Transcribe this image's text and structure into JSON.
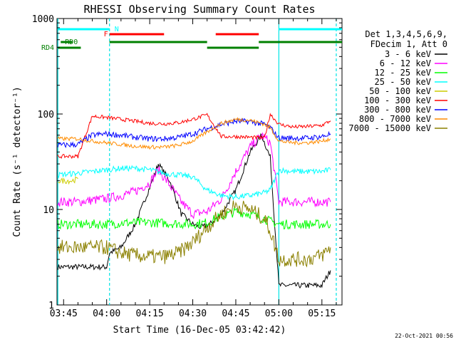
{
  "chart_data": {
    "type": "line",
    "title": "RHESSI Observing Summary Count Rates",
    "xlabel": "Start Time (16-Dec-05 03:42:42)",
    "ylabel": "Count Rate (s⁻¹ detector⁻¹)",
    "y_scale": "log",
    "ylim": [
      1,
      1000
    ],
    "xlim": [
      "03:42:42",
      "05:22:00"
    ],
    "x_ticks": [
      "03:45",
      "04:00",
      "04:15",
      "04:30",
      "04:45",
      "05:00",
      "05:15"
    ],
    "y_ticks": [
      "1",
      "10",
      "100",
      "1000"
    ],
    "timestamp": "22-Oct-2021 00:56",
    "legend": {
      "placement": "right",
      "header": [
        "Det 1,3,4,5,6,9,",
        "FDecim 1, Att 0"
      ]
    },
    "series": [
      {
        "name": "3 - 6 keV",
        "color": "#000000",
        "x": [
          "03:43",
          "03:50",
          "03:55",
          "04:00",
          "04:01",
          "04:05",
          "04:10",
          "04:15",
          "04:18",
          "04:22",
          "04:26",
          "04:30",
          "04:33",
          "04:36",
          "04:40",
          "04:45",
          "04:50",
          "04:54",
          "04:57",
          "05:00",
          "05:05",
          "05:10",
          "05:15",
          "05:18"
        ],
        "y": [
          2.5,
          2.5,
          2.5,
          2.5,
          3.5,
          4,
          7,
          17,
          30,
          20,
          9,
          7,
          6.5,
          7,
          9,
          16,
          40,
          60,
          35,
          1.6,
          1.6,
          1.6,
          1.6,
          2.3
        ]
      },
      {
        "name": "6 - 12 keV",
        "color": "#ff00ff",
        "x": [
          "03:43",
          "03:50",
          "03:55",
          "04:00",
          "04:05",
          "04:10",
          "04:15",
          "04:18",
          "04:22",
          "04:26",
          "04:30",
          "04:35",
          "04:40",
          "04:45",
          "04:50",
          "04:54",
          "04:57",
          "05:00",
          "05:05",
          "05:10",
          "05:15",
          "05:18"
        ],
        "y": [
          12,
          12,
          12.5,
          13,
          14,
          15.5,
          19,
          26,
          18,
          12,
          9,
          9.5,
          13,
          25,
          45,
          60,
          50,
          12,
          12,
          12,
          12,
          12
        ]
      },
      {
        "name": "12 - 25 keV",
        "color": "#00ff00",
        "x": [
          "03:43",
          "03:50",
          "03:55",
          "04:00",
          "04:05",
          "04:10",
          "04:15",
          "04:20",
          "04:25",
          "04:30",
          "04:35",
          "04:40",
          "04:45",
          "04:50",
          "04:55",
          "04:57",
          "05:00",
          "05:05",
          "05:10",
          "05:15",
          "05:18"
        ],
        "y": [
          7,
          7,
          7,
          7,
          7.2,
          7.3,
          7.3,
          7.2,
          7.1,
          7,
          7.3,
          8.5,
          9.5,
          9,
          8,
          7.5,
          7,
          7,
          7,
          7,
          7
        ]
      },
      {
        "name": "25 - 50 keV",
        "color": "#00ffff",
        "x": [
          "03:43",
          "03:50",
          "03:55",
          "04:00",
          "04:05",
          "04:10",
          "04:15",
          "04:20",
          "04:25",
          "04:30",
          "04:35",
          "04:40",
          "04:45",
          "04:50",
          "04:55",
          "04:57",
          "05:00",
          "05:05",
          "05:10",
          "05:15",
          "05:18"
        ],
        "y": [
          23,
          24,
          25,
          26,
          27,
          27,
          26,
          24,
          23,
          22,
          16,
          14,
          13.5,
          14,
          15,
          16,
          26,
          25,
          25,
          25,
          26
        ]
      },
      {
        "name": "50 - 100 keV",
        "color": "#cccc00",
        "x": [
          "03:43",
          "03:48",
          "03:50"
        ],
        "y": [
          20,
          20,
          21
        ]
      },
      {
        "name": "100 - 300 keV",
        "color": "#ff0000",
        "x": [
          "03:43",
          "03:50",
          "03:55",
          "04:00",
          "04:05",
          "04:10",
          "04:15",
          "04:20",
          "04:25",
          "04:30",
          "04:35",
          "04:40",
          "04:45",
          "04:50",
          "04:55",
          "04:57",
          "05:00",
          "05:05",
          "05:10",
          "05:15",
          "05:18"
        ],
        "y": [
          36,
          36,
          95,
          92,
          88,
          84,
          80,
          79,
          81,
          88,
          98,
          58,
          58,
          57,
          56,
          100,
          78,
          73,
          74,
          76,
          85
        ]
      },
      {
        "name": "300 - 800 keV",
        "color": "#0000ff",
        "x": [
          "03:43",
          "03:50",
          "03:55",
          "04:00",
          "04:05",
          "04:10",
          "04:15",
          "04:20",
          "04:25",
          "04:30",
          "04:35",
          "04:40",
          "04:45",
          "04:50",
          "04:55",
          "04:57",
          "05:00",
          "05:05",
          "05:10",
          "05:15",
          "05:18"
        ],
        "y": [
          47,
          48,
          60,
          62,
          60,
          57,
          55,
          55,
          57,
          62,
          70,
          78,
          84,
          83,
          78,
          72,
          56,
          56,
          56,
          58,
          62
        ]
      },
      {
        "name": "800 - 7000 keV",
        "color": "#ff8c00",
        "x": [
          "03:43",
          "03:50",
          "03:55",
          "04:00",
          "04:05",
          "04:10",
          "04:15",
          "04:20",
          "04:25",
          "04:30",
          "04:35",
          "04:40",
          "04:45",
          "04:50",
          "04:55",
          "04:57",
          "05:00",
          "05:05",
          "05:10",
          "05:15",
          "05:18"
        ],
        "y": [
          55,
          55,
          52,
          50,
          48,
          46,
          45,
          45,
          47,
          52,
          65,
          80,
          88,
          86,
          78,
          72,
          52,
          50,
          50,
          52,
          55
        ]
      },
      {
        "name": "7000 - 15000 keV",
        "color": "#8b8000",
        "x": [
          "03:43",
          "03:50",
          "03:55",
          "04:00",
          "04:05",
          "04:10",
          "04:15",
          "04:20",
          "04:25",
          "04:30",
          "04:35",
          "04:40",
          "04:45",
          "04:50",
          "04:55",
          "04:57",
          "05:00",
          "05:05",
          "05:10",
          "05:15",
          "05:18"
        ],
        "y": [
          4,
          4,
          4,
          4,
          3.5,
          3.3,
          3.2,
          3.2,
          3.5,
          4.5,
          6.5,
          9,
          11,
          10,
          8,
          6,
          3,
          3,
          3,
          3.3,
          4
        ]
      }
    ],
    "annotations": {
      "N": {
        "label": "N",
        "color": "#00ffff",
        "segments": [
          [
            "03:43",
            "04:01"
          ],
          [
            "05:00",
            "05:22"
          ]
        ]
      },
      "F": {
        "label": "F",
        "color": "#ff0000",
        "segments": [
          [
            "04:01",
            "04:20"
          ],
          [
            "04:38",
            "04:53"
          ]
        ]
      },
      "RD0": {
        "label": "RD0",
        "color": "#008000",
        "segments": [
          [
            "03:44",
            "03:48"
          ],
          [
            "04:01",
            "04:35"
          ],
          [
            "04:53",
            "05:22"
          ]
        ]
      },
      "RD4": {
        "label": "RD4",
        "color": "#008000",
        "segments": [
          [
            "03:43",
            "03:51"
          ],
          [
            "04:35",
            "04:53"
          ]
        ]
      },
      "night_boundaries": [
        "03:43",
        "04:01",
        "05:00",
        "05:20"
      ]
    }
  }
}
